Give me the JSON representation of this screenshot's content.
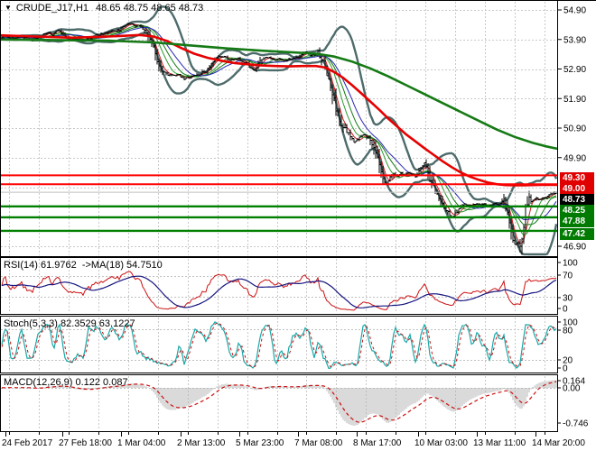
{
  "window": {
    "symbol_timeframe": "CRUDE_J17,H1",
    "ohlc": "48.65 48.75 48.65 48.73",
    "dropdown_icon": "▼"
  },
  "main_chart": {
    "y_ticks": [
      "54.90",
      "53.90",
      "52.90",
      "51.90",
      "50.90",
      "49.90",
      "46.90"
    ],
    "price_labels": [
      {
        "text": "49.30",
        "value": 49.3,
        "bg": "#e00000",
        "fg": "#ffffff"
      },
      {
        "text": "49.00",
        "value": 49.0,
        "bg": "#e00000",
        "fg": "#ffffff"
      },
      {
        "text": "48.73",
        "value": 48.73,
        "bg": "#000000",
        "fg": "#ffffff"
      },
      {
        "text": "48.25",
        "value": 48.25,
        "bg": "#007a00",
        "fg": "#ffffff"
      },
      {
        "text": "47.88",
        "value": 47.88,
        "bg": "#007a00",
        "fg": "#ffffff"
      },
      {
        "text": "47.42",
        "value": 47.42,
        "bg": "#007a00",
        "fg": "#ffffff"
      }
    ]
  },
  "indicators": {
    "rsi": {
      "label": "RSI(14) 61.9762  ->MA(18) 54.7510",
      "y_ticks": [
        "100",
        "70",
        "30",
        "0"
      ],
      "period": 14,
      "ma_period": 18,
      "value": 61.9762,
      "ma_value": 54.751
    },
    "stoch": {
      "label": "Stoch(5,3,3) 82.3529 63.1227",
      "y_ticks": [
        "100",
        "80",
        "20",
        "0"
      ],
      "k_period": 5,
      "d_period": 3,
      "slowing": 3,
      "value_k": 82.3529,
      "value_d": 63.1227
    },
    "macd": {
      "label": "MACD(12,26,9) 0.122 0.087",
      "y_ticks": [
        "0.164",
        "0.00",
        "-0.746"
      ],
      "fast": 12,
      "slow": 26,
      "signal": 9,
      "value": 0.122,
      "signal_value": 0.087
    }
  },
  "time_axis": {
    "labels": [
      "24 Feb 2017",
      "27 Feb 18:00",
      "1 Mar 04:00",
      "2 Mar 13:00",
      "5 Mar 23:00",
      "7 Mar 08:00",
      "8 Mar 17:00",
      "10 Mar 03:00",
      "13 Mar 11:00",
      "14 Mar 20:00"
    ]
  },
  "chart_data": {
    "type": "candlestick",
    "symbol": "CRUDE_J17",
    "timeframe": "H1",
    "title": "CRUDE_J17,H1",
    "last_bar_ohlc": {
      "open": 48.65,
      "high": 48.75,
      "low": 48.65,
      "close": 48.73
    },
    "y_axis": {
      "ticks": [
        54.9,
        53.9,
        52.9,
        51.9,
        50.9,
        49.9,
        46.9
      ],
      "visible_range": [
        46.5,
        55.2
      ]
    },
    "x_axis": {
      "labels": [
        "24 Feb 2017",
        "27 Feb 18:00",
        "1 Mar 04:00",
        "2 Mar 13:00",
        "5 Mar 23:00",
        "7 Mar 08:00",
        "8 Mar 17:00",
        "10 Mar 03:00",
        "13 Mar 11:00",
        "14 Mar 20:00"
      ]
    },
    "levels": {
      "resistance": [
        49.3,
        49.0
      ],
      "support": [
        48.25,
        47.88,
        47.42
      ],
      "current_price": 48.73
    },
    "bollinger": {
      "period": 20,
      "deviation": 2
    },
    "price_path": [
      [
        1,
        53.95
      ],
      [
        6,
        54.05
      ],
      [
        12,
        53.92
      ],
      [
        18,
        53.98
      ],
      [
        24,
        54.02
      ],
      [
        30,
        53.9
      ],
      [
        36,
        53.88
      ],
      [
        42,
        53.98
      ],
      [
        48,
        54.06
      ],
      [
        54,
        54.14
      ],
      [
        58,
        54.06
      ],
      [
        64,
        54.22
      ],
      [
        68,
        54.1
      ],
      [
        74,
        53.98
      ],
      [
        80,
        53.9
      ],
      [
        86,
        53.92
      ],
      [
        92,
        53.86
      ],
      [
        98,
        53.94
      ],
      [
        104,
        54.02
      ],
      [
        110,
        54.06
      ],
      [
        116,
        54.1
      ],
      [
        122,
        54.18
      ],
      [
        128,
        54.16
      ],
      [
        134,
        54.26
      ],
      [
        140,
        54.38
      ],
      [
        146,
        54.44
      ],
      [
        150,
        54.32
      ],
      [
        154,
        54.4
      ],
      [
        158,
        54.28
      ],
      [
        162,
        54.1
      ],
      [
        166,
        53.95
      ],
      [
        170,
        53.6
      ],
      [
        174,
        53.2
      ],
      [
        178,
        52.95
      ],
      [
        182,
        52.8
      ],
      [
        186,
        52.72
      ],
      [
        192,
        52.66
      ],
      [
        198,
        52.7
      ],
      [
        204,
        52.58
      ],
      [
        210,
        52.62
      ],
      [
        216,
        52.68
      ],
      [
        222,
        52.74
      ],
      [
        228,
        52.82
      ],
      [
        234,
        53.05
      ],
      [
        240,
        53.28
      ],
      [
        246,
        53.34
      ],
      [
        252,
        53.24
      ],
      [
        258,
        53.2
      ],
      [
        264,
        53.24
      ],
      [
        270,
        53.16
      ],
      [
        276,
        53.0
      ],
      [
        281,
        52.82
      ],
      [
        286,
        53.05
      ],
      [
        291,
        53.25
      ],
      [
        296,
        53.3
      ],
      [
        302,
        53.2
      ],
      [
        308,
        53.24
      ],
      [
        314,
        53.18
      ],
      [
        320,
        53.22
      ],
      [
        326,
        53.26
      ],
      [
        332,
        53.3
      ],
      [
        337,
        53.52
      ],
      [
        342,
        53.4
      ],
      [
        347,
        53.36
      ],
      [
        352,
        53.46
      ],
      [
        356,
        53.25
      ],
      [
        360,
        52.95
      ],
      [
        364,
        52.5
      ],
      [
        368,
        52.05
      ],
      [
        372,
        51.6
      ],
      [
        376,
        51.15
      ],
      [
        380,
        50.95
      ],
      [
        384,
        50.75
      ],
      [
        388,
        50.6
      ],
      [
        392,
        50.45
      ],
      [
        396,
        50.52
      ],
      [
        400,
        50.62
      ],
      [
        404,
        50.7
      ],
      [
        408,
        50.55
      ],
      [
        412,
        50.4
      ],
      [
        415,
        50.2
      ],
      [
        418,
        49.85
      ],
      [
        421,
        49.45
      ],
      [
        424,
        49.15
      ],
      [
        427,
        48.95
      ],
      [
        430,
        49.1
      ],
      [
        433,
        49.25
      ],
      [
        436,
        49.35
      ],
      [
        440,
        49.28
      ],
      [
        444,
        49.38
      ],
      [
        448,
        49.32
      ],
      [
        452,
        49.4
      ],
      [
        456,
        49.35
      ],
      [
        460,
        49.28
      ],
      [
        464,
        49.42
      ],
      [
        467,
        49.55
      ],
      [
        470,
        49.75
      ],
      [
        473,
        49.45
      ],
      [
        476,
        49.2
      ],
      [
        479,
        48.95
      ],
      [
        482,
        48.75
      ],
      [
        485,
        48.6
      ],
      [
        488,
        48.42
      ],
      [
        491,
        48.28
      ],
      [
        494,
        48.12
      ],
      [
        497,
        48.0
      ],
      [
        500,
        47.92
      ],
      [
        503,
        47.95
      ],
      [
        506,
        48.08
      ],
      [
        509,
        48.2
      ],
      [
        512,
        48.28
      ],
      [
        516,
        48.32
      ],
      [
        520,
        48.26
      ],
      [
        524,
        48.3
      ],
      [
        528,
        48.34
      ],
      [
        532,
        48.28
      ],
      [
        536,
        48.32
      ],
      [
        540,
        48.26
      ],
      [
        544,
        48.3
      ],
      [
        548,
        48.34
      ],
      [
        552,
        48.3
      ],
      [
        555,
        48.38
      ],
      [
        558,
        48.45
      ],
      [
        561,
        48.1
      ],
      [
        564,
        47.55
      ],
      [
        567,
        47.15
      ],
      [
        570,
        47.0
      ],
      [
        573,
        46.96
      ],
      [
        576,
        47.02
      ],
      [
        579,
        47.35
      ],
      [
        582,
        48.25
      ],
      [
        585,
        48.5
      ],
      [
        588,
        48.42
      ],
      [
        591,
        48.5
      ],
      [
        594,
        48.55
      ],
      [
        597,
        48.48
      ],
      [
        600,
        48.55
      ],
      [
        603,
        48.5
      ],
      [
        606,
        48.58
      ],
      [
        610,
        48.64
      ],
      [
        614,
        48.7
      ],
      [
        617,
        48.73
      ]
    ],
    "ma_red": [
      [
        1,
        54.04
      ],
      [
        40,
        54.0
      ],
      [
        80,
        53.96
      ],
      [
        120,
        54.0
      ],
      [
        155,
        54.05
      ],
      [
        170,
        54.0
      ],
      [
        185,
        53.85
      ],
      [
        200,
        53.62
      ],
      [
        215,
        53.42
      ],
      [
        230,
        53.28
      ],
      [
        245,
        53.18
      ],
      [
        260,
        53.1
      ],
      [
        275,
        53.06
      ],
      [
        290,
        53.02
      ],
      [
        305,
        53.0
      ],
      [
        320,
        52.99
      ],
      [
        335,
        53.0
      ],
      [
        350,
        53.0
      ],
      [
        360,
        52.95
      ],
      [
        370,
        52.8
      ],
      [
        380,
        52.6
      ],
      [
        390,
        52.35
      ],
      [
        400,
        52.08
      ],
      [
        410,
        51.8
      ],
      [
        420,
        51.52
      ],
      [
        430,
        51.22
      ],
      [
        440,
        50.95
      ],
      [
        450,
        50.68
      ],
      [
        460,
        50.45
      ],
      [
        470,
        50.22
      ],
      [
        480,
        50.0
      ],
      [
        490,
        49.78
      ],
      [
        500,
        49.58
      ],
      [
        510,
        49.4
      ],
      [
        520,
        49.26
      ],
      [
        530,
        49.15
      ],
      [
        540,
        49.06
      ],
      [
        550,
        49.0
      ],
      [
        560,
        48.97
      ],
      [
        570,
        48.96
      ],
      [
        580,
        48.96
      ],
      [
        590,
        48.97
      ],
      [
        600,
        48.98
      ],
      [
        610,
        48.98
      ],
      [
        617,
        48.98
      ]
    ],
    "ma_green": [
      [
        1,
        53.9
      ],
      [
        60,
        53.88
      ],
      [
        120,
        53.86
      ],
      [
        170,
        53.8
      ],
      [
        210,
        53.7
      ],
      [
        250,
        53.6
      ],
      [
        290,
        53.52
      ],
      [
        320,
        53.47
      ],
      [
        350,
        53.42
      ],
      [
        370,
        53.32
      ],
      [
        390,
        53.15
      ],
      [
        410,
        52.92
      ],
      [
        430,
        52.65
      ],
      [
        450,
        52.35
      ],
      [
        470,
        52.05
      ],
      [
        490,
        51.75
      ],
      [
        510,
        51.45
      ],
      [
        530,
        51.15
      ],
      [
        550,
        50.85
      ],
      [
        570,
        50.6
      ],
      [
        590,
        50.4
      ],
      [
        605,
        50.28
      ],
      [
        617,
        50.2
      ]
    ],
    "colors": {
      "bars": "#000000",
      "bollinger": "#4e6b6b",
      "ma_red": "#e60000",
      "ma_green": "#157a15",
      "thin_ma_red": "#cc2020",
      "thin_ma_green1": "#2f9b2f",
      "thin_ma_green2": "#157a15",
      "thin_ma_blue": "#2929b4",
      "resistance": "#ff0000",
      "support": "#008000",
      "bid_line": "#c0c0c0",
      "rsi_line": "#cc1111",
      "rsi_ma": "#151580",
      "stoch_k": "#18a8a8",
      "stoch_d": "#cc1111",
      "macd_hist": "#b4b4b4",
      "macd_signal": "#cc1111",
      "grid": "#c8c8c8"
    }
  }
}
